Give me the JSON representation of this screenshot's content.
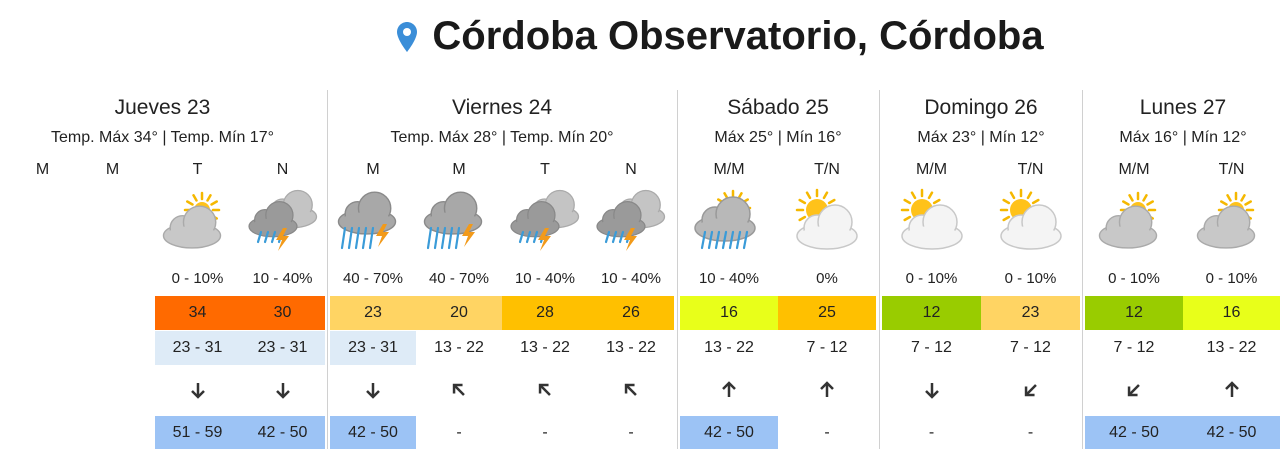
{
  "title": "Córdoba Observatorio, Córdoba",
  "days": [
    {
      "name": "Jueves 23",
      "subtitle": "Temp. Máx 34° | Temp. Mín 17°",
      "periods": [
        {
          "label": "M"
        },
        {
          "label": "M"
        },
        {
          "label": "T",
          "icon": "cloud-sun-gray",
          "rain": "0 - 10%",
          "temp": "34",
          "temp_color": "#ff6a00",
          "wind": "23 - 31",
          "wind_color": "#deebf7",
          "arrow": 180,
          "gust": "51 - 59",
          "gust_color": "#9cc3f5"
        },
        {
          "label": "N",
          "icon": "storm",
          "rain": "10 - 40%",
          "temp": "30",
          "temp_color": "#ff6a00",
          "wind": "23 - 31",
          "wind_color": "#deebf7",
          "arrow": 180,
          "gust": "42 - 50",
          "gust_color": "#9cc3f5"
        }
      ]
    },
    {
      "name": "Viernes 24",
      "subtitle": "Temp. Máx 28° | Temp. Mín 20°",
      "periods": [
        {
          "label": "M",
          "icon": "rain-storm",
          "rain": "40 - 70%",
          "temp": "23",
          "temp_color": "#ffd463",
          "wind": "23 - 31",
          "wind_color": "#deebf7",
          "arrow": 180,
          "gust": "42 - 50",
          "gust_color": "#9cc3f5"
        },
        {
          "label": "M",
          "icon": "rain-storm",
          "rain": "40 - 70%",
          "temp": "20",
          "temp_color": "#ffd463",
          "wind": "13 - 22",
          "wind_color": "#ffffff",
          "arrow": -45,
          "gust": "-",
          "gust_color": "#ffffff"
        },
        {
          "label": "T",
          "icon": "storm",
          "rain": "10 - 40%",
          "temp": "28",
          "temp_color": "#ffc000",
          "wind": "13 - 22",
          "wind_color": "#ffffff",
          "arrow": -45,
          "gust": "-",
          "gust_color": "#ffffff"
        },
        {
          "label": "N",
          "icon": "storm",
          "rain": "10 - 40%",
          "temp": "26",
          "temp_color": "#ffc000",
          "wind": "13 - 22",
          "wind_color": "#ffffff",
          "arrow": -45,
          "gust": "-",
          "gust_color": "#ffffff"
        }
      ]
    },
    {
      "name": "Sábado 25",
      "subtitle": "Máx 25° | Mín 16°",
      "periods": [
        {
          "label": "M/M",
          "icon": "rain",
          "rain": "10 - 40%",
          "temp": "16",
          "temp_color": "#e8ff1a",
          "wind": "13 - 22",
          "wind_color": "#ffffff",
          "arrow": 0,
          "gust": "42 - 50",
          "gust_color": "#9cc3f5"
        },
        {
          "label": "T/N",
          "icon": "sun-cloud",
          "rain": "0%",
          "temp": "25",
          "temp_color": "#ffc000",
          "wind": "7 - 12",
          "wind_color": "#ffffff",
          "arrow": 0,
          "gust": "-",
          "gust_color": "#ffffff"
        }
      ]
    },
    {
      "name": "Domingo 26",
      "subtitle": "Máx 23° | Mín 12°",
      "periods": [
        {
          "label": "M/M",
          "icon": "sun-cloud",
          "rain": "0 - 10%",
          "temp": "12",
          "temp_color": "#99cc00",
          "wind": "7 - 12",
          "wind_color": "#ffffff",
          "arrow": 180,
          "gust": "-",
          "gust_color": "#ffffff"
        },
        {
          "label": "T/N",
          "icon": "sun-cloud",
          "rain": "0 - 10%",
          "temp": "23",
          "temp_color": "#ffd463",
          "wind": "7 - 12",
          "wind_color": "#ffffff",
          "arrow": -135,
          "gust": "-",
          "gust_color": "#ffffff"
        }
      ]
    },
    {
      "name": "Lunes 27",
      "subtitle": "Máx 16° | Mín 12°",
      "periods": [
        {
          "label": "M/M",
          "icon": "cloud-sun-gray",
          "rain": "0 - 10%",
          "temp": "12",
          "temp_color": "#99cc00",
          "wind": "7 - 12",
          "wind_color": "#ffffff",
          "arrow": -135,
          "gust": "42 - 50",
          "gust_color": "#9cc3f5"
        },
        {
          "label": "T/N",
          "icon": "cloud-sun-gray",
          "rain": "0 - 10%",
          "temp": "16",
          "temp_color": "#e8ff1a",
          "wind": "13 - 22",
          "wind_color": "#ffffff",
          "arrow": 0,
          "gust": "42 - 50",
          "gust_color": "#9cc3f5"
        }
      ]
    }
  ]
}
